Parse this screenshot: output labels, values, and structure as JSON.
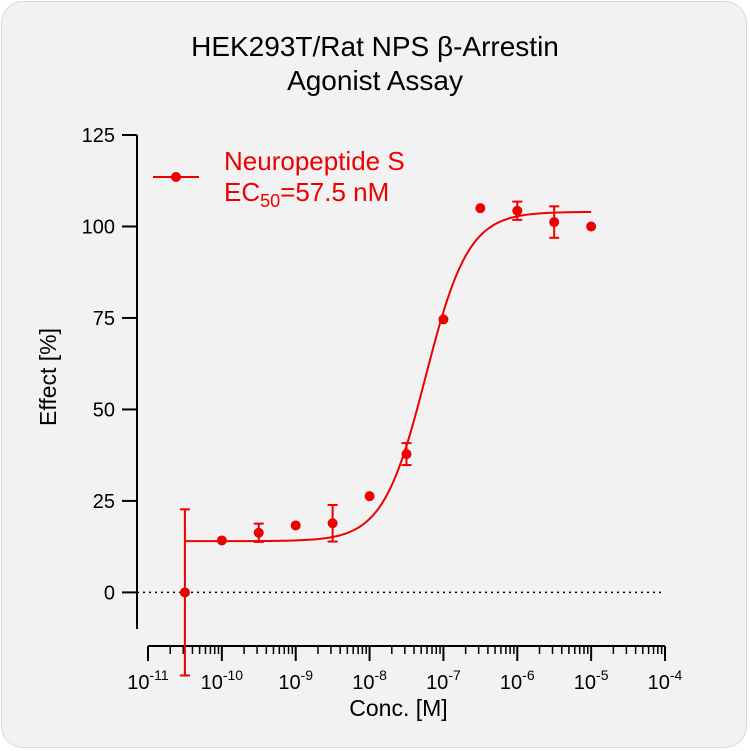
{
  "chart_data": {
    "type": "scatter",
    "title_line1": "HEK293T/Rat NPS β-Arrestin",
    "title_line2": "Agonist Assay",
    "xlabel": "Conc. [M]",
    "ylabel": "Effect  [%]",
    "x_scale": "log",
    "xlim": [
      1e-11,
      0.0001
    ],
    "ylim": [
      -10,
      125
    ],
    "y_ticks": [
      0,
      25,
      50,
      75,
      100,
      125
    ],
    "x_tick_labels": [
      {
        "exp": -11,
        "base": "10",
        "sup": "-11"
      },
      {
        "exp": -10,
        "base": "10",
        "sup": "-10"
      },
      {
        "exp": -9,
        "base": "10",
        "sup": "-9"
      },
      {
        "exp": -8,
        "base": "10",
        "sup": "-8"
      },
      {
        "exp": -7,
        "base": "10",
        "sup": "-7"
      },
      {
        "exp": -6,
        "base": "10",
        "sup": "-6"
      },
      {
        "exp": -5,
        "base": "10",
        "sup": "-5"
      },
      {
        "exp": -4,
        "base": "10",
        "sup": "-4"
      }
    ],
    "series": [
      {
        "name": "Neuropeptide S",
        "color": "#ee0000",
        "points": [
          {
            "x": 3.16e-11,
            "y": 0,
            "err": 22.7
          },
          {
            "x": 1e-10,
            "y": 14.2,
            "err": 0
          },
          {
            "x": 3.16e-10,
            "y": 16.3,
            "err": 2.5
          },
          {
            "x": 1e-09,
            "y": 18.3,
            "err": 0
          },
          {
            "x": 3.16e-09,
            "y": 18.9,
            "err": 5
          },
          {
            "x": 1e-08,
            "y": 26.3,
            "err": 0
          },
          {
            "x": 3.16e-08,
            "y": 37.8,
            "err": 3
          },
          {
            "x": 1e-07,
            "y": 74.6,
            "err": 0
          },
          {
            "x": 3.16e-07,
            "y": 105,
            "err": 0
          },
          {
            "x": 1e-06,
            "y": 104.3,
            "err": 2.5
          },
          {
            "x": 3.16e-06,
            "y": 101.2,
            "err": 4.3
          },
          {
            "x": 1e-05,
            "y": 100,
            "err": 0
          }
        ],
        "fit": {
          "bottom": 14,
          "top": 104,
          "ec50": 5.75e-08,
          "hill": 1.5
        }
      }
    ],
    "legend": {
      "placement": "top-left",
      "ec50_prefix": "EC",
      "ec50_sub": "50",
      "ec50_value": "=57.5 nM"
    },
    "zero_line": "dotted"
  }
}
